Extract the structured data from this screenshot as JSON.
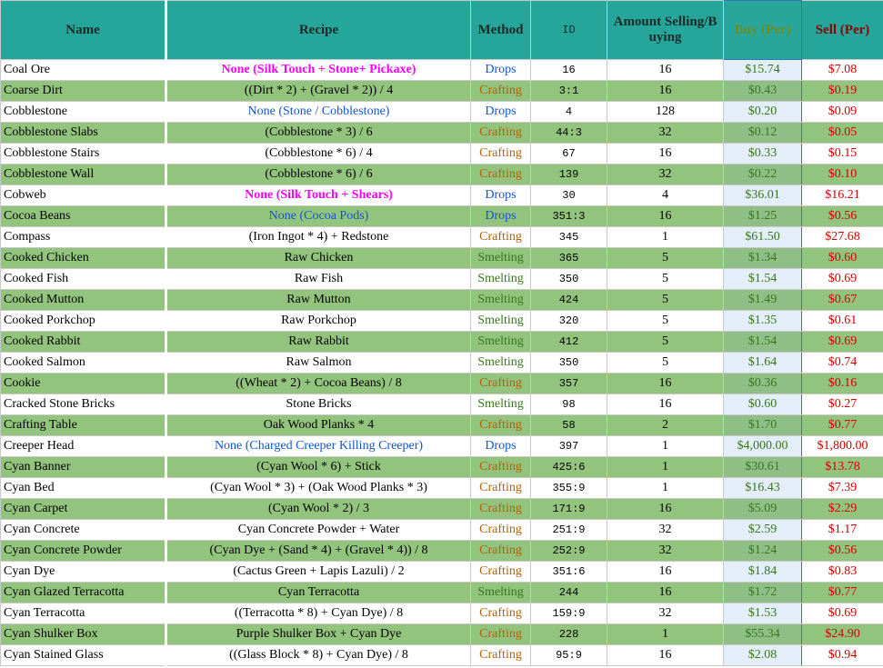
{
  "table": {
    "header": [
      "Name",
      "Recipe",
      "Method",
      "ID",
      "Amount Selling/Buying",
      "Buy (Per)",
      "Sell (Per)"
    ],
    "method_colors": {
      "Drops": "#1155cc",
      "Crafting": "#b45f06",
      "Smelting": "#38761d"
    },
    "rows": [
      {
        "name": "Coal Ore",
        "recipe": "None (Silk Touch + Stone+ Pickaxe)",
        "recipe_color": "#ff00ff",
        "method": "Drops",
        "id": "16",
        "amount": "16",
        "buy": "$15.74",
        "sell": "$7.08"
      },
      {
        "name": "Coarse Dirt",
        "recipe": "((Dirt * 2) + (Gravel * 2)) / 4",
        "method": "Crafting",
        "id": "3:1",
        "amount": "16",
        "buy": "$0.43",
        "sell": "$0.19"
      },
      {
        "name": "Cobblestone",
        "recipe": "None (Stone / Cobblestone)",
        "recipe_color": "#1155cc",
        "method": "Drops",
        "id": "4",
        "amount": "128",
        "buy": "$0.20",
        "sell": "$0.09"
      },
      {
        "name": "Cobblestone Slabs",
        "recipe": "(Cobblestone * 3) / 6",
        "method": "Crafting",
        "id": "44:3",
        "amount": "32",
        "buy": "$0.12",
        "sell": "$0.05"
      },
      {
        "name": "Cobblestone Stairs",
        "recipe": "(Cobblestone * 6) / 4",
        "method": "Crafting",
        "id": "67",
        "amount": "16",
        "buy": "$0.33",
        "sell": "$0.15"
      },
      {
        "name": "Cobblestone Wall",
        "recipe": "(Cobblestone * 6) / 6",
        "method": "Crafting",
        "id": "139",
        "amount": "32",
        "buy": "$0.22",
        "sell": "$0.10"
      },
      {
        "name": "Cobweb",
        "recipe": "None (Silk Touch + Shears)",
        "recipe_color": "#ff00ff",
        "method": "Drops",
        "id": "30",
        "amount": "4",
        "buy": "$36.01",
        "sell": "$16.21"
      },
      {
        "name": "Cocoa Beans",
        "recipe": "None (Cocoa Pods)",
        "recipe_color": "#1155cc",
        "method": "Drops",
        "id": "351:3",
        "amount": "16",
        "buy": "$1.25",
        "sell": "$0.56"
      },
      {
        "name": "Compass",
        "recipe": "(Iron Ingot * 4) + Redstone",
        "method": "Crafting",
        "id": "345",
        "amount": "1",
        "buy": "$61.50",
        "sell": "$27.68"
      },
      {
        "name": "Cooked Chicken",
        "recipe": "Raw Chicken",
        "method": "Smelting",
        "id": "365",
        "amount": "5",
        "buy": "$1.34",
        "sell": "$0.60"
      },
      {
        "name": "Cooked Fish",
        "recipe": "Raw Fish",
        "method": "Smelting",
        "id": "350",
        "amount": "5",
        "buy": "$1.54",
        "sell": "$0.69"
      },
      {
        "name": "Cooked Mutton",
        "recipe": "Raw Mutton",
        "method": "Smelting",
        "id": "424",
        "amount": "5",
        "buy": "$1.49",
        "sell": "$0.67"
      },
      {
        "name": "Cooked Porkchop",
        "recipe": "Raw Porkchop",
        "method": "Smelting",
        "id": "320",
        "amount": "5",
        "buy": "$1.35",
        "sell": "$0.61"
      },
      {
        "name": "Cooked Rabbit",
        "recipe": "Raw Rabbit",
        "method": "Smelting",
        "id": "412",
        "amount": "5",
        "buy": "$1.54",
        "sell": "$0.69"
      },
      {
        "name": "Cooked Salmon",
        "recipe": "Raw Salmon",
        "method": "Smelting",
        "id": "350",
        "amount": "5",
        "buy": "$1.64",
        "sell": "$0.74"
      },
      {
        "name": "Cookie",
        "recipe": "((Wheat * 2) + Cocoa Beans) / 8",
        "method": "Crafting",
        "id": "357",
        "amount": "16",
        "buy": "$0.36",
        "sell": "$0.16"
      },
      {
        "name": "Cracked Stone Bricks",
        "recipe": "Stone Bricks",
        "method": "Smelting",
        "id": "98",
        "amount": "16",
        "buy": "$0.60",
        "sell": "$0.27"
      },
      {
        "name": "Crafting Table",
        "recipe": "Oak Wood Planks * 4",
        "method": "Crafting",
        "id": "58",
        "amount": "2",
        "buy": "$1.70",
        "sell": "$0.77"
      },
      {
        "name": "Creeper Head",
        "recipe": "None (Charged Creeper Killing Creeper)",
        "recipe_color": "#1155cc",
        "method": "Drops",
        "id": "397",
        "amount": "1",
        "buy": "$4,000.00",
        "sell": "$1,800.00"
      },
      {
        "name": "Cyan Banner",
        "recipe": "(Cyan Wool * 6) + Stick",
        "method": "Crafting",
        "id": "425:6",
        "amount": "1",
        "buy": "$30.61",
        "sell": "$13.78"
      },
      {
        "name": "Cyan Bed",
        "recipe": "(Cyan Wool * 3) + (Oak Wood Planks * 3)",
        "method": "Crafting",
        "id": "355:9",
        "amount": "1",
        "buy": "$16.43",
        "sell": "$7.39"
      },
      {
        "name": "Cyan Carpet",
        "recipe": "(Cyan Wool * 2) / 3",
        "method": "Crafting",
        "id": "171:9",
        "amount": "16",
        "buy": "$5.09",
        "sell": "$2.29"
      },
      {
        "name": "Cyan Concrete",
        "recipe": "Cyan Concrete Powder + Water",
        "method": "Crafting",
        "id": "251:9",
        "amount": "32",
        "buy": "$2.59",
        "sell": "$1.17"
      },
      {
        "name": "Cyan Concrete Powder",
        "recipe": "(Cyan Dye + (Sand * 4) + (Gravel * 4)) / 8",
        "method": "Crafting",
        "id": "252:9",
        "amount": "32",
        "buy": "$1.24",
        "sell": "$0.56"
      },
      {
        "name": "Cyan Dye",
        "recipe": "(Cactus Green + Lapis Lazuli) / 2",
        "method": "Crafting",
        "id": "351:6",
        "amount": "16",
        "buy": "$1.84",
        "sell": "$0.83"
      },
      {
        "name": "Cyan Glazed Terracotta",
        "recipe": "Cyan Terracotta",
        "method": "Smelting",
        "id": "244",
        "amount": "16",
        "buy": "$1.72",
        "sell": "$0.77"
      },
      {
        "name": "Cyan Terracotta",
        "recipe": "((Terracotta * 8) + Cyan Dye) / 8",
        "method": "Crafting",
        "id": "159:9",
        "amount": "32",
        "buy": "$1.53",
        "sell": "$0.69"
      },
      {
        "name": "Cyan Shulker Box",
        "recipe": "Purple Shulker Box + Cyan Dye",
        "method": "Crafting",
        "id": "228",
        "amount": "1",
        "buy": "$55.34",
        "sell": "$24.90"
      },
      {
        "name": "Cyan Stained Glass",
        "recipe": "((Glass Block * 8) + Cyan Dye) / 8",
        "method": "Crafting",
        "id": "95:9",
        "amount": "16",
        "buy": "$2.08",
        "sell": "$0.94"
      }
    ]
  }
}
